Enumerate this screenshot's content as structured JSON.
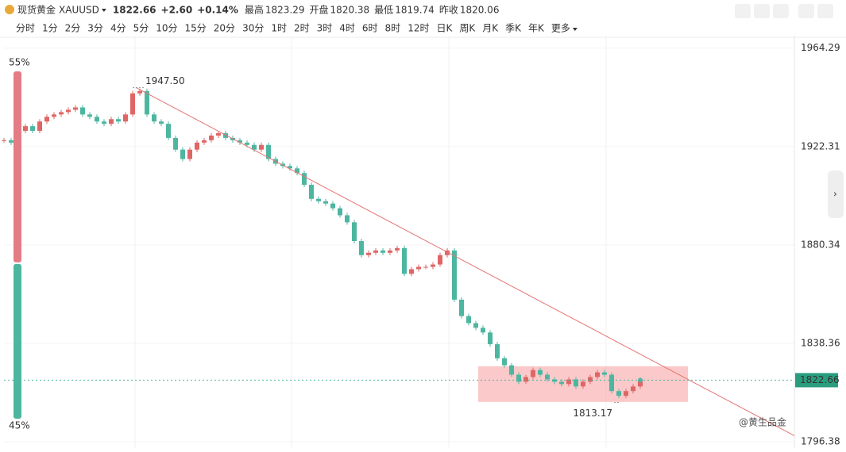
{
  "header": {
    "name": "现货黄金",
    "symbol": "XAUUSD",
    "price": "1822.66",
    "change": "+2.60",
    "change_pct": "+0.14%",
    "stats": [
      [
        "最高",
        "1823.29"
      ],
      [
        "开盘",
        "1820.38"
      ],
      [
        "最低",
        "1819.74"
      ],
      [
        "昨收",
        "1820.06"
      ]
    ]
  },
  "toolbar": {
    "intervals": [
      "分时",
      "1分",
      "2分",
      "3分",
      "4分",
      "5分",
      "10分",
      "15分",
      "20分",
      "30分",
      "1时",
      "2时",
      "3时",
      "4时",
      "6时",
      "8时",
      "12时",
      "日K",
      "周K",
      "月K",
      "季K",
      "年K",
      "更多"
    ],
    "active": 10
  },
  "chart_data": {
    "type": "candlestick",
    "values": [
      1925,
      1924,
      1929,
      1931,
      1929,
      1933,
      1935,
      1936,
      1937,
      1938,
      1939,
      1936,
      1935,
      1933,
      1932,
      1934,
      1933,
      1936,
      1945,
      1946,
      1936,
      1933,
      1932,
      1926,
      1921,
      1917,
      1921,
      1924,
      1925,
      1927,
      1928,
      1926,
      1925,
      1924,
      1923,
      1921,
      1923,
      1917,
      1915,
      1914,
      1913,
      1911,
      1906,
      1900,
      1899,
      1898,
      1896,
      1893,
      1890,
      1882,
      1876,
      1877,
      1878,
      1877,
      1878,
      1879,
      1868,
      1870,
      1871,
      1871,
      1872,
      1876,
      1878,
      1857,
      1850,
      1847,
      1845,
      1843,
      1838,
      1832,
      1829,
      1825,
      1822,
      1824,
      1827,
      1825,
      1823,
      1822,
      1821,
      1823,
      1820,
      1822,
      1824,
      1826,
      1825,
      1818,
      1816,
      1818,
      1820,
      1822.66
    ],
    "up_color": "#e06666",
    "down_color": "#4db6a0",
    "ylim": [
      1793.72,
      1969.6
    ],
    "yticks": [
      1796.38,
      1838.36,
      1880.34,
      1922.31,
      1964.29
    ],
    "last_price": 1822.66,
    "annotations": [
      {
        "value": 1947.5,
        "label": "1947.50"
      },
      {
        "value": 1813.17,
        "label": "1813.17"
      }
    ],
    "trendline": [
      1947.5,
      1799
    ],
    "trendline_color": "#e57373",
    "range_box": [
      1813.4,
      1828.6
    ],
    "range_box_color": "#f8a5a5"
  },
  "sentiment": {
    "values": [
      55,
      45
    ],
    "value_labels": [
      "55%",
      "45%"
    ],
    "colors": [
      "#e57b84",
      "#4db6a0"
    ]
  },
  "watermark": "@黄生品金"
}
